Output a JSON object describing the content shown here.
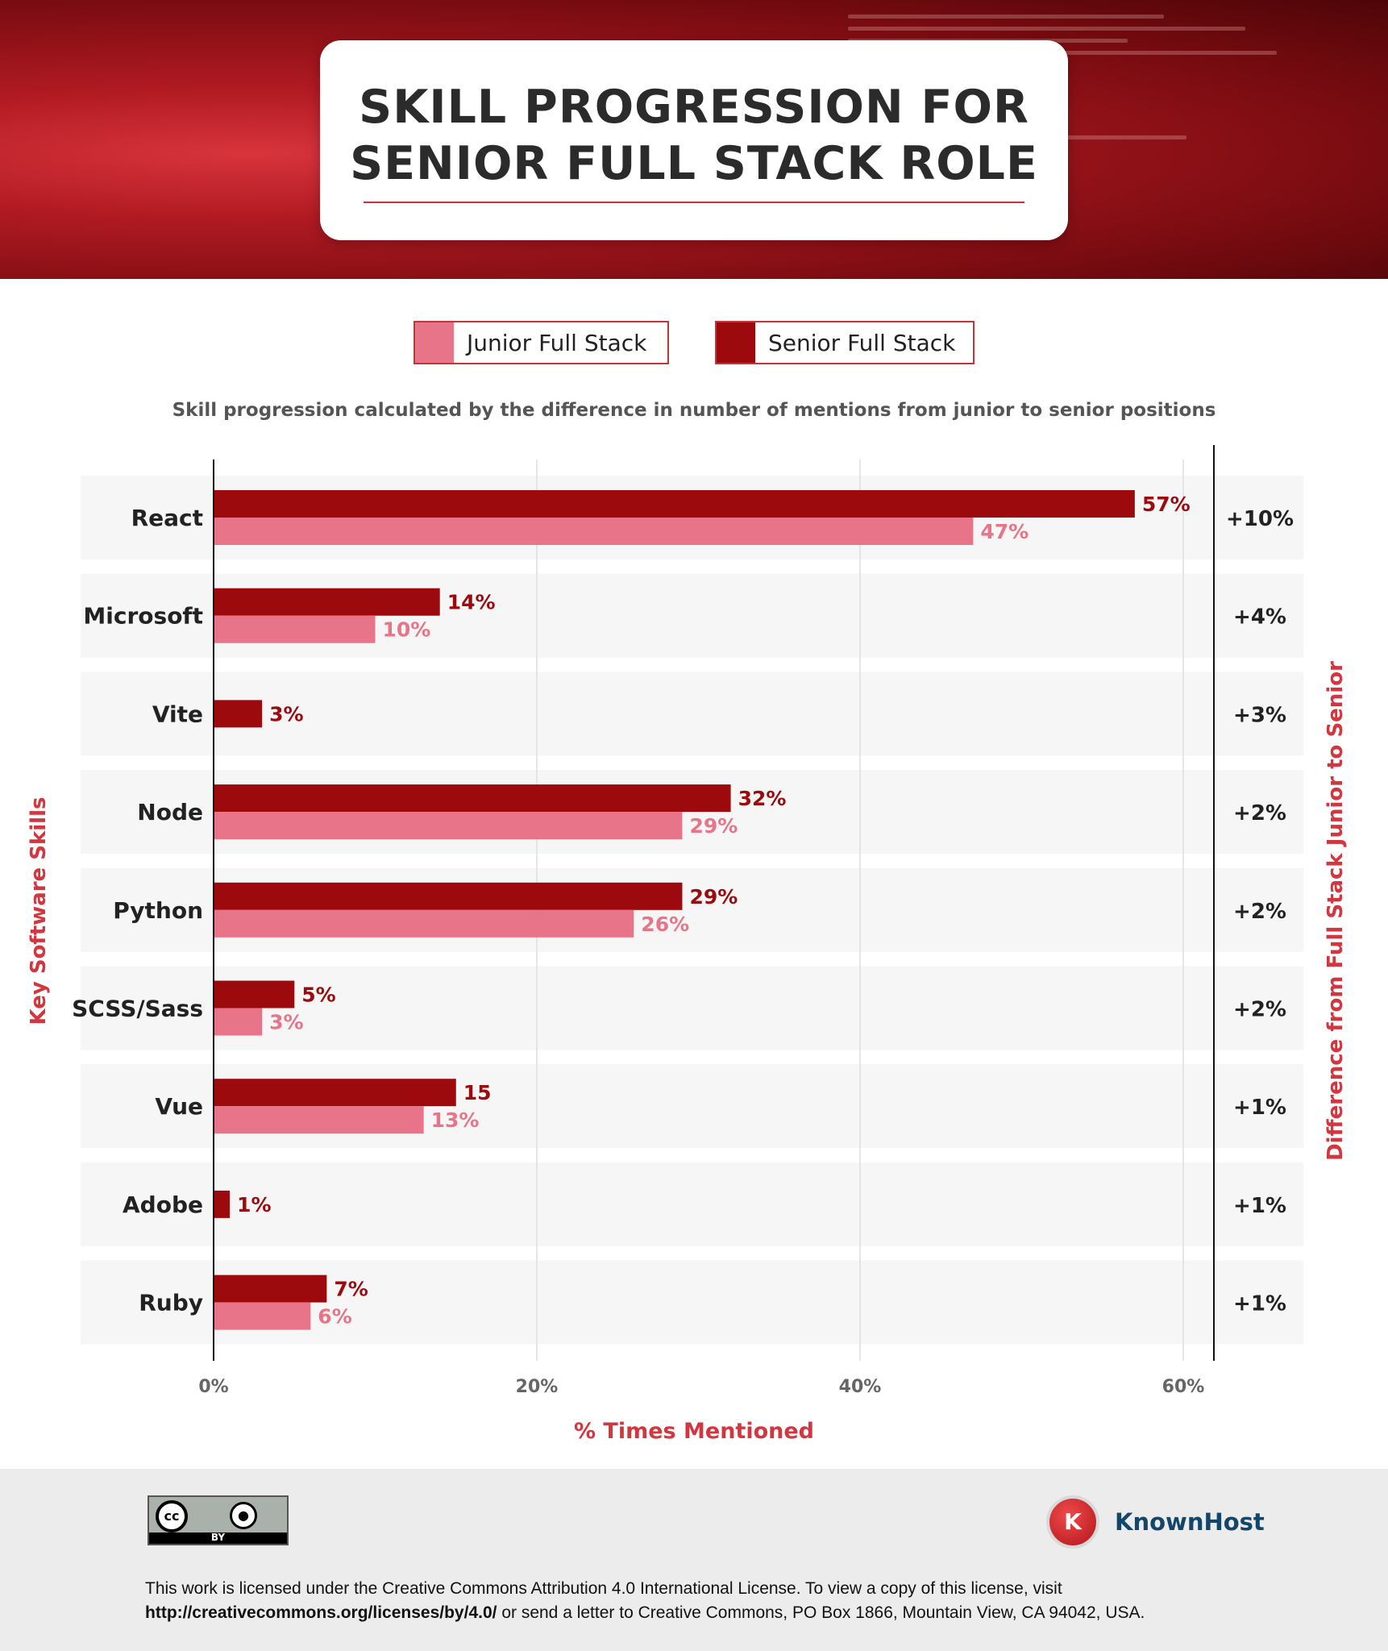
{
  "header": {
    "title_line1": "SKILL PROGRESSION FOR",
    "title_line2": "SENIOR FULL STACK ROLE"
  },
  "legend": {
    "junior": "Junior Full Stack",
    "senior": "Senior Full Stack"
  },
  "subtitle": "Skill progression calculated by the difference in number of mentions from junior to senior positions",
  "axis": {
    "ylabel_left": "Key Software Skills",
    "ylabel_right": "Difference from Full Stack Junior to Senior",
    "xlabel": "% Times Mentioned"
  },
  "chart_data": {
    "type": "bar",
    "orientation": "horizontal",
    "categories": [
      "React",
      "Microsoft",
      "Vite",
      "Node",
      "Python",
      "SCSS/Sass",
      "Vue",
      "Adobe",
      "Ruby"
    ],
    "series": [
      {
        "name": "Senior Full Stack",
        "values": [
          57,
          14,
          3,
          32,
          29,
          5,
          15,
          1,
          7
        ],
        "labels": [
          "57%",
          "14%",
          "3%",
          "32%",
          "29%",
          "5%",
          "15",
          "1%",
          "7%"
        ]
      },
      {
        "name": "Junior Full Stack",
        "values": [
          47,
          10,
          null,
          29,
          26,
          3,
          13,
          null,
          6
        ],
        "labels": [
          "47%",
          "10%",
          "",
          "29%",
          "26%",
          "3%",
          "13%",
          "",
          "6%"
        ]
      }
    ],
    "differences": [
      "+10%",
      "+4%",
      "+3%",
      "+2%",
      "+2%",
      "+2%",
      "+1%",
      "+1%",
      "+1%"
    ],
    "xticks": [
      "0%",
      "20%",
      "40%",
      "60%"
    ],
    "xtick_values": [
      0,
      20,
      40,
      60
    ],
    "xlim": [
      0,
      62
    ],
    "grid": true,
    "colors": {
      "senior": "#9c0a0e",
      "junior": "#e77488",
      "accent": "#d2373f",
      "row_band": "#f6f6f6"
    }
  },
  "footer": {
    "cc_text": "cc",
    "by_icon": "person-icon",
    "by_text": "BY",
    "brand_mark": "K",
    "brand_name": "KnownHost",
    "license_part1": "This work is licensed under the Creative Commons Attribution 4.0 International License. To view a copy of this license, visit ",
    "license_url": "http://creativecommons.org/licenses/by/4.0/",
    "license_part2": " or send a letter to Creative Commons, PO Box 1866, Mountain View, CA 94042, USA."
  }
}
